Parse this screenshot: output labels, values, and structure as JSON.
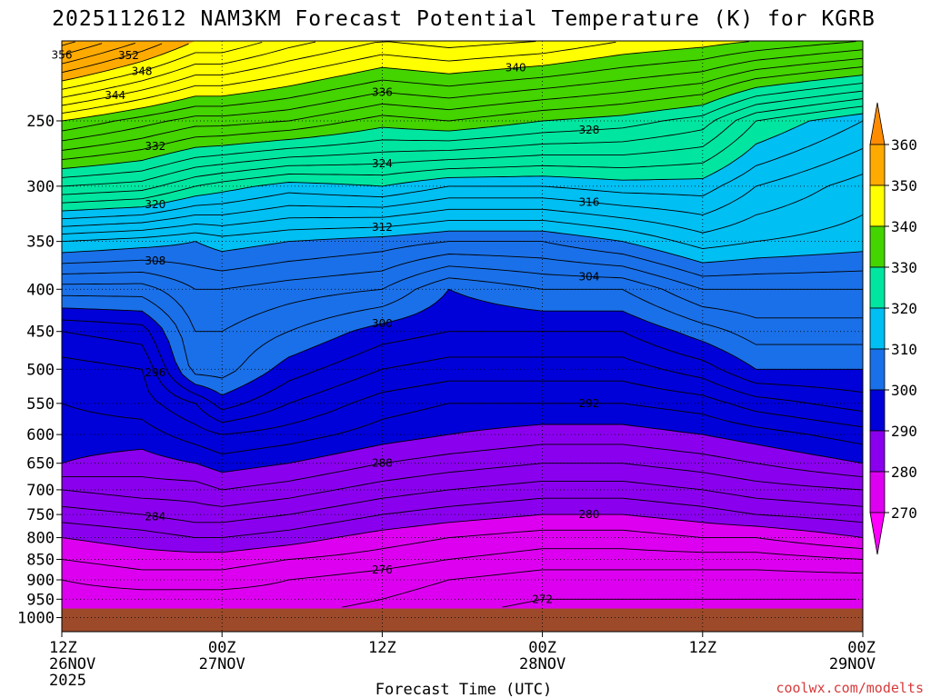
{
  "chart_data": {
    "type": "contour",
    "title": "2025112612 NAM3KM Forecast Potential Temperature (K) for KGRB",
    "xlabel": "Forecast Time (UTC)",
    "ylabel": "",
    "credit": "coolwx.com/modelts",
    "y_axis": {
      "unit": "hPa",
      "scale": "log-pressure",
      "ticks": [
        "250",
        "300",
        "350",
        "400",
        "450",
        "500",
        "550",
        "600",
        "650",
        "700",
        "750",
        "800",
        "850",
        "900",
        "950",
        "1000"
      ],
      "range": [
        200,
        1040
      ]
    },
    "x_axis": {
      "unit": "hours",
      "range": [
        0,
        60
      ],
      "ticks": [
        {
          "hour": 0,
          "line1": "12Z",
          "line2": "26NOV",
          "line3": "2025"
        },
        {
          "hour": 12,
          "line1": "00Z",
          "line2": "27NOV",
          "line3": ""
        },
        {
          "hour": 24,
          "line1": "12Z",
          "line2": "",
          "line3": ""
        },
        {
          "hour": 36,
          "line1": "00Z",
          "line2": "28NOV",
          "line3": ""
        },
        {
          "hour": 48,
          "line1": "12Z",
          "line2": "",
          "line3": ""
        },
        {
          "hour": 60,
          "line1": "00Z",
          "line2": "29NOV",
          "line3": ""
        }
      ]
    },
    "colorbar": {
      "labels": [
        "270",
        "280",
        "290",
        "300",
        "310",
        "320",
        "330",
        "340",
        "350",
        "360"
      ],
      "bands": [
        {
          "from": 260,
          "to": 270,
          "color": "#ff00ff"
        },
        {
          "from": 270,
          "to": 280,
          "color": "#dd00f0"
        },
        {
          "from": 280,
          "to": 290,
          "color": "#8a00ee"
        },
        {
          "from": 290,
          "to": 300,
          "color": "#0000d8"
        },
        {
          "from": 300,
          "to": 310,
          "color": "#1a70e8"
        },
        {
          "from": 310,
          "to": 320,
          "color": "#00bff3"
        },
        {
          "from": 320,
          "to": 330,
          "color": "#00e6a0"
        },
        {
          "from": 330,
          "to": 340,
          "color": "#44d400"
        },
        {
          "from": 340,
          "to": 350,
          "color": "#ffff00"
        },
        {
          "from": 350,
          "to": 360,
          "color": "#ffaa00"
        },
        {
          "from": 360,
          "to": 370,
          "color": "#ff8c00"
        }
      ]
    },
    "ground_color": "#9c4a2a",
    "surface_pressure_hpa": 975,
    "contour_interval_k": 2,
    "contour_profiles": {
      "levels_hpa": [
        200,
        250,
        300,
        350,
        400,
        450,
        500,
        550,
        600,
        650,
        700,
        750,
        800,
        850,
        900,
        950,
        1000
      ],
      "columns": [
        {
          "hour": 0,
          "theta": [
            359,
            340,
            326,
            312,
            303,
            296,
            293,
            292,
            291,
            290,
            286,
            283,
            280,
            278,
            276,
            275,
            274
          ]
        },
        {
          "hour": 6,
          "theta": [
            354,
            337,
            325,
            311,
            303,
            297,
            294,
            293,
            291,
            289,
            287,
            284,
            281,
            279,
            277,
            275,
            274
          ]
        },
        {
          "hour": 10,
          "theta": [
            350,
            335,
            322,
            310,
            306,
            304,
            303,
            296,
            293,
            290,
            287,
            285,
            282,
            279,
            277,
            275,
            274
          ]
        },
        {
          "hour": 12,
          "theta": [
            350,
            335,
            321,
            311,
            306,
            304,
            303,
            299,
            294,
            291,
            288,
            285,
            282,
            279,
            277,
            275,
            274
          ]
        },
        {
          "hour": 17,
          "theta": [
            347,
            334,
            319,
            310,
            305,
            302,
            299,
            296,
            293,
            290,
            287,
            284,
            281,
            278,
            276,
            275,
            274
          ]
        },
        {
          "hour": 24,
          "theta": [
            344,
            331,
            320,
            309,
            304,
            299,
            296,
            293,
            291,
            288,
            285,
            282,
            279,
            277,
            275,
            274,
            273
          ]
        },
        {
          "hour": 29,
          "theta": [
            345,
            332,
            318,
            308,
            300,
            298,
            295,
            292,
            290,
            287,
            284,
            281,
            278,
            276,
            274,
            273,
            272
          ]
        },
        {
          "hour": 36,
          "theta": [
            344,
            330,
            318,
            308,
            302,
            298,
            295,
            292,
            289,
            286,
            283,
            280,
            277,
            275,
            273,
            272,
            271
          ]
        },
        {
          "hour": 42,
          "theta": [
            342,
            329,
            319,
            310,
            302,
            298,
            295,
            292,
            289,
            286,
            283,
            280,
            277,
            275,
            273,
            272,
            271
          ]
        },
        {
          "hour": 48,
          "theta": [
            341,
            327,
            319,
            313,
            306,
            301,
            297,
            293,
            290,
            287,
            284,
            281,
            278,
            275,
            273,
            272,
            271
          ]
        },
        {
          "hour": 52,
          "theta": [
            340,
            322,
            316,
            312,
            306,
            303,
            300,
            295,
            291,
            288,
            285,
            282,
            278,
            275,
            273,
            272,
            271
          ]
        },
        {
          "hour": 60,
          "theta": [
            338,
            318,
            313,
            311,
            306,
            303,
            300,
            297,
            293,
            290,
            286,
            283,
            280,
            276,
            273,
            272,
            272
          ]
        }
      ]
    },
    "contour_labels": [
      "356",
      "352",
      "348",
      "344",
      "340",
      "336",
      "332",
      "328",
      "324",
      "320",
      "316",
      "312",
      "308",
      "304",
      "300",
      "296",
      "292",
      "288",
      "284",
      "280",
      "276",
      "272"
    ]
  }
}
